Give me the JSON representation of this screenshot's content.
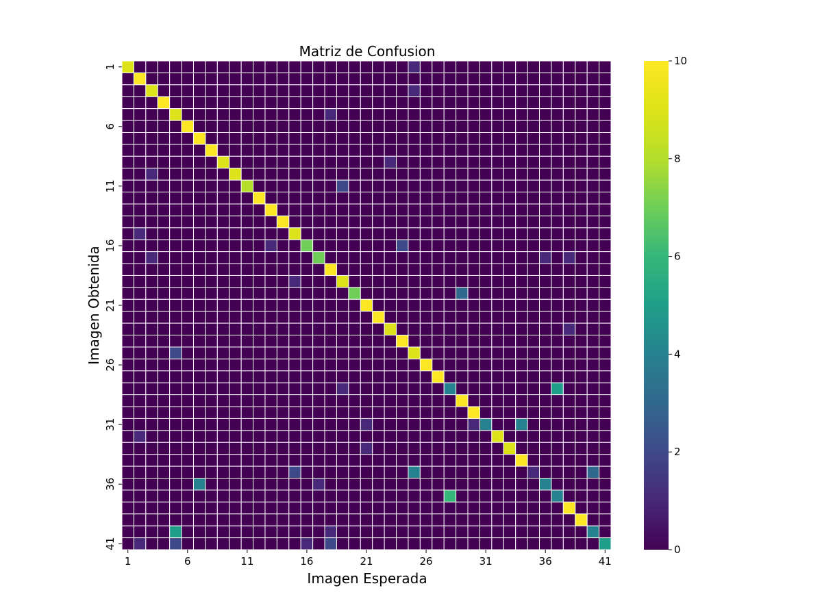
{
  "chart_data": {
    "type": "heatmap",
    "title": "Matriz de Confusion",
    "xlabel": "Imagen Esperada",
    "ylabel": "Imagen Obtenida",
    "n": 41,
    "x_tick_labels": [
      "1",
      "6",
      "11",
      "16",
      "21",
      "26",
      "31",
      "36",
      "41"
    ],
    "y_tick_labels": [
      "1",
      "6",
      "11",
      "16",
      "21",
      "26",
      "31",
      "36",
      "41"
    ],
    "colorbar_ticks": [
      "0",
      "2",
      "4",
      "6",
      "8",
      "10"
    ],
    "value_range": [
      0,
      10
    ],
    "colormap": "viridis",
    "gridline_color": "#ffffff",
    "diagonal": [
      9,
      10,
      9,
      10,
      9,
      10,
      10,
      10,
      9,
      9,
      8,
      10,
      10,
      10,
      9,
      7,
      7,
      10,
      9,
      7,
      10,
      10,
      9,
      10,
      9,
      10,
      10,
      4,
      10,
      10,
      4,
      9,
      9,
      10,
      1,
      4,
      4,
      10,
      10,
      4,
      5
    ],
    "off_diagonal_nonzero": [
      {
        "expected": 25,
        "obtained": 1,
        "value": 1
      },
      {
        "expected": 25,
        "obtained": 3,
        "value": 1
      },
      {
        "expected": 18,
        "obtained": 5,
        "value": 1
      },
      {
        "expected": 23,
        "obtained": 9,
        "value": 1
      },
      {
        "expected": 3,
        "obtained": 10,
        "value": 1
      },
      {
        "expected": 19,
        "obtained": 11,
        "value": 2
      },
      {
        "expected": 2,
        "obtained": 15,
        "value": 1
      },
      {
        "expected": 13,
        "obtained": 16,
        "value": 1
      },
      {
        "expected": 24,
        "obtained": 16,
        "value": 2
      },
      {
        "expected": 3,
        "obtained": 17,
        "value": 1
      },
      {
        "expected": 36,
        "obtained": 17,
        "value": 1
      },
      {
        "expected": 38,
        "obtained": 17,
        "value": 1
      },
      {
        "expected": 15,
        "obtained": 19,
        "value": 1
      },
      {
        "expected": 29,
        "obtained": 20,
        "value": 3
      },
      {
        "expected": 38,
        "obtained": 23,
        "value": 1
      },
      {
        "expected": 5,
        "obtained": 25,
        "value": 2
      },
      {
        "expected": 19,
        "obtained": 28,
        "value": 1
      },
      {
        "expected": 37,
        "obtained": 28,
        "value": 5
      },
      {
        "expected": 21,
        "obtained": 31,
        "value": 1
      },
      {
        "expected": 30,
        "obtained": 31,
        "value": 1
      },
      {
        "expected": 34,
        "obtained": 31,
        "value": 4
      },
      {
        "expected": 2,
        "obtained": 32,
        "value": 1
      },
      {
        "expected": 21,
        "obtained": 33,
        "value": 1
      },
      {
        "expected": 15,
        "obtained": 35,
        "value": 2
      },
      {
        "expected": 25,
        "obtained": 35,
        "value": 4
      },
      {
        "expected": 40,
        "obtained": 35,
        "value": 3
      },
      {
        "expected": 7,
        "obtained": 36,
        "value": 4
      },
      {
        "expected": 17,
        "obtained": 36,
        "value": 1
      },
      {
        "expected": 28,
        "obtained": 37,
        "value": 6
      },
      {
        "expected": 5,
        "obtained": 40,
        "value": 5
      },
      {
        "expected": 18,
        "obtained": 40,
        "value": 1
      },
      {
        "expected": 2,
        "obtained": 41,
        "value": 1
      },
      {
        "expected": 5,
        "obtained": 41,
        "value": 2
      },
      {
        "expected": 16,
        "obtained": 41,
        "value": 1
      },
      {
        "expected": 18,
        "obtained": 41,
        "value": 2
      }
    ]
  }
}
